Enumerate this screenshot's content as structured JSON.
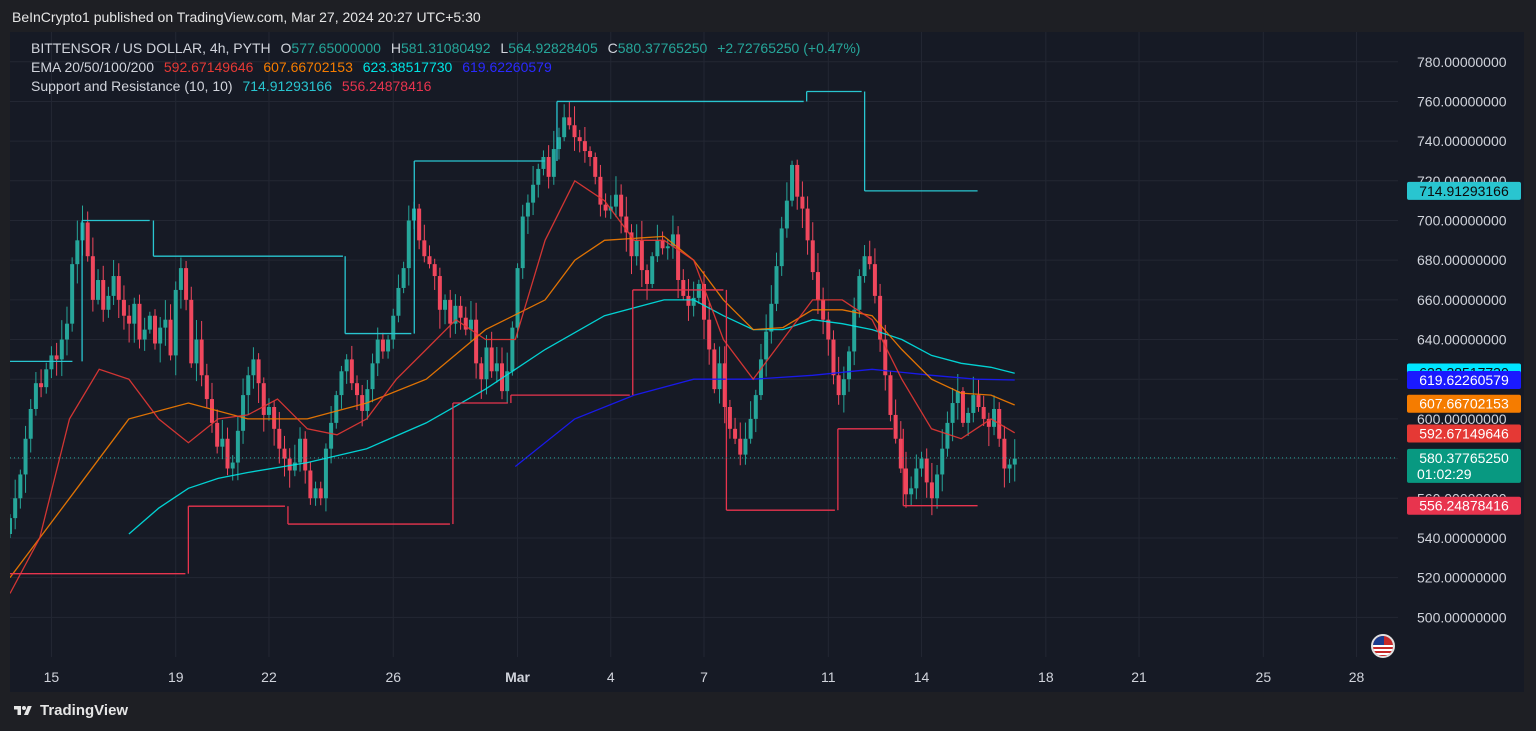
{
  "published_by": "BeInCrypto1 published on TradingView.com, Mar 27, 2024 20:27 UTC+5:30",
  "footer_brand": "TradingView",
  "legend": {
    "symbol": "BITTENSOR / US DOLLAR, 4h, PYTH",
    "open_key": "O",
    "open": "577.65000000",
    "high_key": "H",
    "high": "581.31080492",
    "low_key": "L",
    "low": "564.92828405",
    "close_key": "C",
    "close": "580.37765250",
    "change": "+2.72765250 (+0.47%)",
    "ema_label": "EMA 20/50/100/200",
    "ema20": "592.67149646",
    "ema50": "607.66702153",
    "ema100": "623.38517730",
    "ema200": "619.62260579",
    "sr_label": "Support and Resistance (10, 10)",
    "resistance": "714.91293166",
    "support": "556.24878416"
  },
  "colors": {
    "background": "#161a25",
    "up": "#26a69a",
    "down": "#f0475d",
    "ema20": "#e53935",
    "ema50": "#f57c00",
    "ema100": "#00e5e5",
    "ema200": "#1a1aff",
    "resistance": "#29c5d0",
    "support": "#e8344e"
  },
  "chart_data": {
    "type": "candlestick",
    "title": "BITTENSOR / US DOLLAR, 4h, PYTH",
    "y_range": [
      480,
      795
    ],
    "y_ticks": [
      500,
      520,
      540,
      560,
      580,
      600,
      620,
      640,
      660,
      680,
      700,
      720,
      740,
      760,
      780
    ],
    "y_tick_decimals": 8,
    "x_range": [
      "2024-02-13T16:00",
      "2024-03-29T08:00"
    ],
    "x_ticks": [
      {
        "t": "2024-02-15",
        "label": "15"
      },
      {
        "t": "2024-02-19",
        "label": "19"
      },
      {
        "t": "2024-02-22",
        "label": "22"
      },
      {
        "t": "2024-02-26",
        "label": "26"
      },
      {
        "t": "2024-03-01",
        "label": "Mar",
        "bold": true
      },
      {
        "t": "2024-03-04",
        "label": "4"
      },
      {
        "t": "2024-03-07",
        "label": "7"
      },
      {
        "t": "2024-03-11",
        "label": "11"
      },
      {
        "t": "2024-03-14",
        "label": "14"
      },
      {
        "t": "2024-03-18",
        "label": "18"
      },
      {
        "t": "2024-03-21",
        "label": "21"
      },
      {
        "t": "2024-03-25",
        "label": "25"
      },
      {
        "t": "2024-03-28",
        "label": "28"
      }
    ],
    "first_candle": "2024-02-13T16:00",
    "interval_hours": 4,
    "closes": [
      550,
      560,
      572,
      590,
      605,
      618,
      616,
      625,
      632,
      630,
      640,
      648,
      678,
      690,
      699,
      682,
      660,
      670,
      655,
      662,
      672,
      660,
      652,
      648,
      658,
      640,
      645,
      652,
      638,
      646,
      650,
      632,
      665,
      676,
      660,
      628,
      640,
      622,
      610,
      598,
      586,
      590,
      575,
      578,
      594,
      612,
      622,
      630,
      618,
      602,
      606,
      595,
      585,
      580,
      574,
      578,
      590,
      574,
      560,
      565,
      560,
      585,
      598,
      612,
      624,
      630,
      618,
      612,
      604,
      615,
      628,
      640,
      634,
      640,
      652,
      666,
      676,
      700,
      706,
      690,
      682,
      678,
      672,
      655,
      660,
      648,
      657,
      651,
      645,
      650,
      628,
      620,
      636,
      624,
      628,
      614,
      624,
      646,
      676,
      702,
      709,
      718,
      726,
      732,
      722,
      736,
      742,
      752,
      748,
      742,
      740,
      735,
      732,
      722,
      708,
      705,
      707,
      713,
      702,
      694,
      682,
      690,
      675,
      668,
      682,
      690,
      686,
      687,
      693,
      670,
      662,
      657,
      661,
      668,
      650,
      635,
      615,
      628,
      606,
      595,
      590,
      582,
      590,
      600,
      612,
      630,
      644,
      658,
      677,
      696,
      710,
      728,
      712,
      706,
      690,
      674,
      660,
      650,
      640,
      622,
      612,
      620,
      634,
      655,
      672,
      682,
      678,
      662,
      640,
      622,
      602,
      590,
      575,
      562,
      565,
      575,
      580,
      568,
      560,
      572,
      585,
      598,
      608,
      614,
      598,
      603,
      612,
      606,
      600,
      596,
      605,
      590,
      575,
      577,
      580
    ],
    "ema20": [
      [
        0,
        512
      ],
      [
        40,
        540
      ],
      [
        80,
        600
      ],
      [
        120,
        625
      ],
      [
        160,
        620
      ],
      [
        200,
        600
      ],
      [
        240,
        588
      ],
      [
        280,
        600
      ],
      [
        320,
        602
      ],
      [
        360,
        610
      ],
      [
        400,
        595
      ],
      [
        440,
        592
      ],
      [
        480,
        600
      ],
      [
        520,
        620
      ],
      [
        560,
        635
      ],
      [
        600,
        650
      ],
      [
        640,
        640
      ],
      [
        680,
        640
      ],
      [
        720,
        690
      ],
      [
        760,
        720
      ],
      [
        800,
        710
      ],
      [
        840,
        690
      ],
      [
        880,
        690
      ],
      [
        920,
        680
      ],
      [
        960,
        640
      ],
      [
        1000,
        620
      ],
      [
        1040,
        640
      ],
      [
        1080,
        660
      ],
      [
        1120,
        660
      ],
      [
        1160,
        650
      ],
      [
        1200,
        620
      ],
      [
        1240,
        595
      ],
      [
        1280,
        590
      ],
      [
        1320,
        600
      ],
      [
        1352,
        593
      ]
    ],
    "ema50": [
      [
        0,
        520
      ],
      [
        80,
        560
      ],
      [
        160,
        600
      ],
      [
        240,
        608
      ],
      [
        320,
        600
      ],
      [
        400,
        600
      ],
      [
        480,
        608
      ],
      [
        560,
        620
      ],
      [
        640,
        645
      ],
      [
        720,
        660
      ],
      [
        760,
        680
      ],
      [
        800,
        690
      ],
      [
        880,
        692
      ],
      [
        920,
        680
      ],
      [
        960,
        660
      ],
      [
        1000,
        645
      ],
      [
        1040,
        646
      ],
      [
        1080,
        655
      ],
      [
        1120,
        655
      ],
      [
        1160,
        652
      ],
      [
        1200,
        635
      ],
      [
        1240,
        620
      ],
      [
        1280,
        613
      ],
      [
        1320,
        612
      ],
      [
        1352,
        607
      ]
    ],
    "ema100": [
      [
        160,
        542
      ],
      [
        200,
        555
      ],
      [
        240,
        565
      ],
      [
        280,
        570
      ],
      [
        320,
        573
      ],
      [
        400,
        578
      ],
      [
        480,
        585
      ],
      [
        560,
        598
      ],
      [
        640,
        615
      ],
      [
        720,
        635
      ],
      [
        800,
        652
      ],
      [
        880,
        660
      ],
      [
        920,
        660
      ],
      [
        960,
        652
      ],
      [
        1000,
        645
      ],
      [
        1040,
        645
      ],
      [
        1080,
        650
      ],
      [
        1120,
        648
      ],
      [
        1160,
        645
      ],
      [
        1200,
        640
      ],
      [
        1240,
        632
      ],
      [
        1280,
        628
      ],
      [
        1320,
        626
      ],
      [
        1352,
        623
      ]
    ],
    "ema200": [
      [
        680,
        576
      ],
      [
        760,
        600
      ],
      [
        840,
        612
      ],
      [
        920,
        620
      ],
      [
        1000,
        620
      ],
      [
        1080,
        622
      ],
      [
        1160,
        625
      ],
      [
        1240,
        622
      ],
      [
        1300,
        620
      ],
      [
        1352,
        619.6
      ]
    ],
    "resistance_levels": [
      {
        "y": 629,
        "x0": 0,
        "x1": 84
      },
      {
        "y": 700,
        "x0": 97,
        "x1": 188
      },
      {
        "y": 682,
        "x0": 193,
        "x1": 448
      },
      {
        "y": 643,
        "x0": 451,
        "x1": 540
      },
      {
        "y": 730,
        "x0": 544,
        "x1": 720
      },
      {
        "y": 760,
        "x0": 736,
        "x1": 1068
      },
      {
        "y": 765,
        "x0": 1072,
        "x1": 1146
      },
      {
        "y": 714.91,
        "x0": 1150,
        "x1": 1302
      }
    ],
    "support_levels": [
      {
        "y": 522,
        "x0": 0,
        "x1": 236
      },
      {
        "y": 556,
        "x0": 240,
        "x1": 370
      },
      {
        "y": 547,
        "x0": 374,
        "x1": 592
      },
      {
        "y": 608,
        "x0": 596,
        "x1": 670
      },
      {
        "y": 612,
        "x0": 674,
        "x1": 834
      },
      {
        "y": 665,
        "x0": 838,
        "x1": 960
      },
      {
        "y": 554,
        "x0": 964,
        "x1": 1110
      },
      {
        "y": 595,
        "x0": 1114,
        "x1": 1188
      },
      {
        "y": 556.25,
        "x0": 1202,
        "x1": 1302
      }
    ],
    "current_price": 580.3776525,
    "price_tags": [
      {
        "value": 714.91293166,
        "label": "714.91293166",
        "color": "#29c5d0",
        "text": "#0b0b0b"
      },
      {
        "value": 623.3851773,
        "label": "623.38517730",
        "color": "#00e5ff",
        "text": "#0b0b0b"
      },
      {
        "value": 619.62260579,
        "label": "619.62260579",
        "color": "#1a1aff",
        "text": "#ffffff"
      },
      {
        "value": 607.66702153,
        "label": "607.66702153",
        "color": "#f57c00",
        "text": "#ffffff"
      },
      {
        "value": 592.67149646,
        "label": "592.67149646",
        "color": "#e53935",
        "text": "#ffffff"
      },
      {
        "value": 580.3776525,
        "label": "580.37765250",
        "sub": "01:02:29",
        "color": "#089981",
        "text": "#ffffff"
      },
      {
        "value": 556.24878416,
        "label": "556.24878416",
        "color": "#e8344e",
        "text": "#ffffff"
      }
    ]
  }
}
